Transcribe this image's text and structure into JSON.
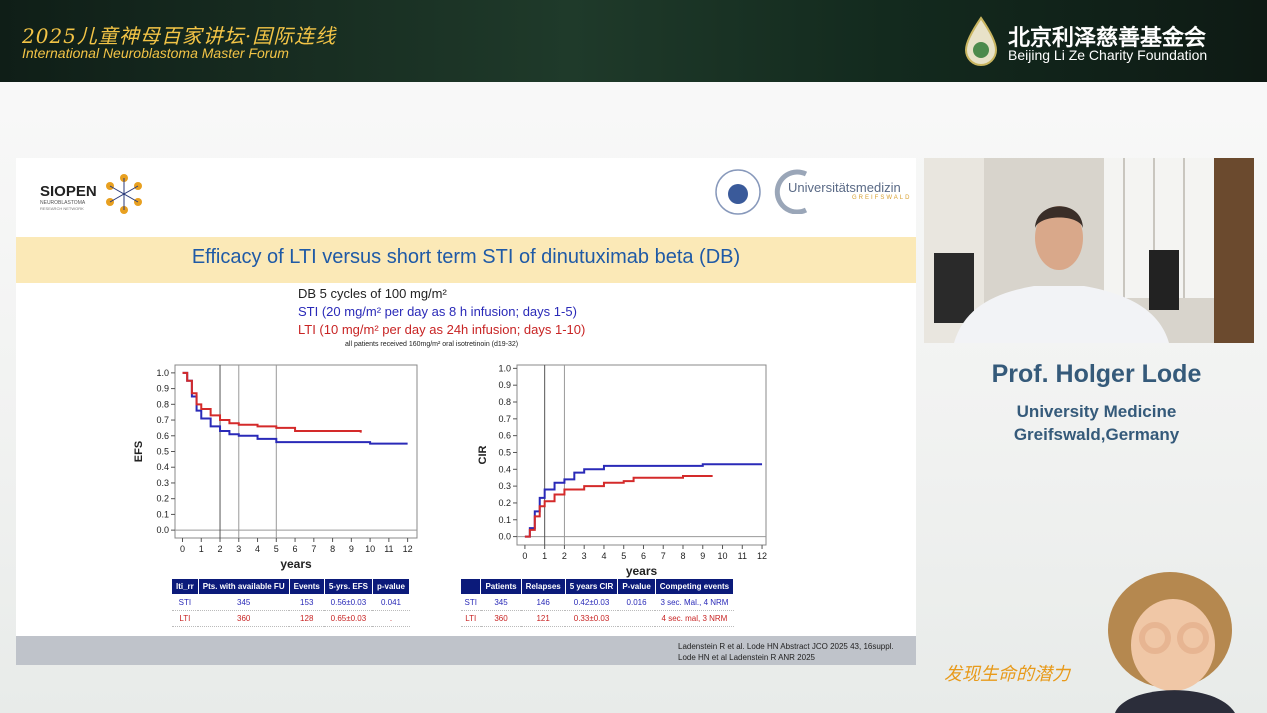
{
  "header": {
    "title_cn": "2025儿童神母百家讲坛·国际连线",
    "title_en": "International Neuroblastoma Master Forum",
    "org_cn": "北京利泽慈善基金会",
    "org_en": "Beijing Li Ze Charity Foundation"
  },
  "slide": {
    "logo_left": "SIOPEN",
    "logo_left_sub1": "NEUROBLASTOMA",
    "logo_left_sub2": "RESEARCH NETWORK",
    "logo_right": "Universitätsmedizin",
    "logo_right_sub": "GREIFSWALD",
    "title": "Efficacy of LTI versus short term STI of dinutuximab beta (DB)",
    "lines": [
      "DB 5 cycles of 100 mg/m²",
      "STI (20 mg/m² per day as 8 h infusion; days 1-5)",
      "LTI (10 mg/m² per day as 24h infusion; days 1-10)",
      "all patients received 160mg/m² oral isotretinoin (d19-32)"
    ],
    "tables": [
      {
        "header": [
          "lti_rr",
          "Pts. with available FU",
          "Events",
          "5-yrs. EFS",
          "p-value"
        ],
        "rows": [
          [
            "STI",
            "345",
            "153",
            "0.56±0.03",
            "0.041"
          ],
          [
            "LTI",
            "360",
            "128",
            "0.65±0.03",
            "."
          ]
        ]
      },
      {
        "header": [
          null,
          "Patients",
          "Relapses",
          "5 years CIR",
          "P-value",
          "Competing events"
        ],
        "rows": [
          [
            "STI",
            "345",
            "146",
            "0.42±0.03",
            "0.016",
            "3 sec. Mal., 4 NRM"
          ],
          [
            "LTI",
            "360",
            "121",
            "0.33±0.03",
            null,
            "4 sec. mal, 3 NRM"
          ]
        ]
      }
    ],
    "references": [
      "Ladenstein R et al. Lode HN Abstract JCO 2025 43, 16suppl.",
      "Lode HN et al Ladenstein R ANR 2025"
    ]
  },
  "speaker": {
    "name": "Prof. Holger Lode",
    "affiliation_1": "University Medicine",
    "affiliation_2": "Greifswald,Germany"
  },
  "slogan": "发现生命的潜力",
  "chart_data": [
    {
      "type": "line",
      "x_label": "years",
      "y_label": "EFS",
      "xlim": [
        -0.4,
        12.5
      ],
      "ylim": [
        -0.05,
        1.05
      ],
      "xticks": [
        0,
        1,
        2,
        3,
        4,
        5,
        6,
        7,
        8,
        9,
        10,
        11,
        12
      ],
      "yticks": [
        {
          "value": 0,
          "label": "0.0"
        },
        0.1,
        0.2,
        0.3,
        0.4,
        0.5,
        0.6,
        0.7,
        0.8,
        0.9,
        {
          "value": 1,
          "label": "1.0"
        }
      ],
      "vlines": [
        2,
        3,
        5
      ],
      "series": [
        {
          "name": "STI",
          "color": "#2a2ab8",
          "x": [
            0,
            0.25,
            0.5,
            0.75,
            1,
            1.5,
            2,
            2.5,
            3,
            4,
            5,
            6,
            8,
            10,
            12
          ],
          "values": [
            1.0,
            0.95,
            0.85,
            0.76,
            0.71,
            0.66,
            0.63,
            0.61,
            0.6,
            0.58,
            0.56,
            0.56,
            0.56,
            0.55,
            0.55
          ]
        },
        {
          "name": "LTI",
          "color": "#d42a2a",
          "x": [
            0,
            0.25,
            0.5,
            0.75,
            1,
            1.5,
            2,
            2.5,
            3,
            4,
            5,
            6,
            8,
            9.5
          ],
          "values": [
            1.0,
            0.95,
            0.87,
            0.8,
            0.77,
            0.73,
            0.7,
            0.68,
            0.67,
            0.66,
            0.65,
            0.63,
            0.63,
            0.62
          ]
        }
      ]
    },
    {
      "type": "line",
      "x_label": "years",
      "y_label": "CIR",
      "xlim": [
        -0.4,
        12.2
      ],
      "ylim": [
        -0.05,
        1.02
      ],
      "xticks": [
        0,
        1,
        2,
        3,
        4,
        5,
        6,
        7,
        8,
        9,
        10,
        11,
        12
      ],
      "yticks": [
        {
          "value": 0,
          "label": "0.0"
        },
        0.1,
        0.2,
        0.3,
        0.4,
        0.5,
        0.6,
        0.7,
        0.8,
        0.9,
        {
          "value": 1,
          "label": "1.0"
        }
      ],
      "vlines": [
        1,
        2
      ],
      "series": [
        {
          "name": "STI",
          "color": "#2a2ab8",
          "x": [
            0,
            0.25,
            0.5,
            0.75,
            1,
            1.5,
            2,
            2.5,
            3,
            4,
            5,
            7,
            9,
            12
          ],
          "values": [
            0,
            0.05,
            0.15,
            0.23,
            0.28,
            0.32,
            0.34,
            0.38,
            0.4,
            0.42,
            0.42,
            0.42,
            0.43,
            0.43
          ]
        },
        {
          "name": "LTI",
          "color": "#d42a2a",
          "x": [
            0,
            0.25,
            0.5,
            0.75,
            1,
            1.5,
            2,
            3,
            4,
            5,
            5.5,
            6,
            8,
            9.5
          ],
          "values": [
            0,
            0.04,
            0.12,
            0.18,
            0.21,
            0.25,
            0.28,
            0.3,
            0.32,
            0.33,
            0.35,
            0.35,
            0.36,
            0.36
          ]
        }
      ]
    }
  ]
}
